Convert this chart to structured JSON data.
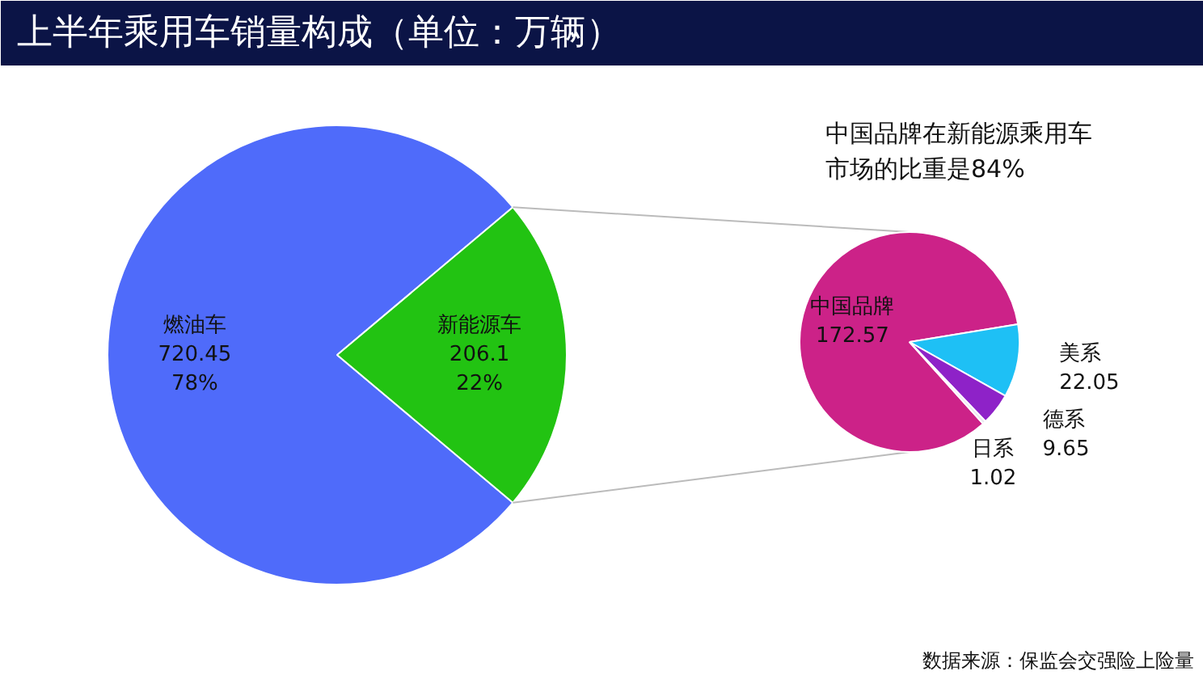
{
  "chart_data": [
    {
      "type": "pie",
      "title": "上半年乘用车销量构成（单位：万辆）",
      "categories": [
        "燃油车",
        "新能源车"
      ],
      "values": [
        720.45,
        206.1
      ],
      "colors": [
        "#4f6bfa",
        "#22c312"
      ],
      "value_labels": [
        "720.45\n78%",
        "206.1\n22%"
      ],
      "legend": false
    },
    {
      "type": "pie",
      "title": "中国品牌在新能源乘用车市场的比重是84%",
      "categories": [
        "中国品牌",
        "美系",
        "德系",
        "日系"
      ],
      "values": [
        172.57,
        22.05,
        9.65,
        1.02
      ],
      "colors": [
        "#cc2288",
        "#1ec0f5",
        "#8e22c8",
        "#e8e8f0"
      ],
      "data_labels": true,
      "legend": false,
      "annotations": [
        "数据来源：保监会交强险上险量"
      ]
    }
  ]
}
